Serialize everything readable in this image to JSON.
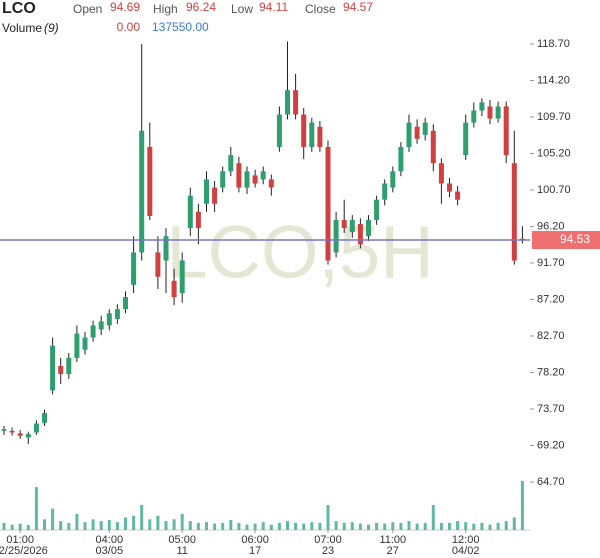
{
  "chart_data": {
    "type": "candlestick",
    "title": "LCO",
    "ohlc_labels": [
      "Open",
      "High",
      "Low",
      "Close"
    ],
    "ohlc_values": [
      94.69,
      96.24,
      94.11,
      94.57
    ],
    "volume_label": "Volume",
    "volume_period": "(9)",
    "volume_values": [
      {
        "value": 0,
        "label": "0.00"
      },
      {
        "value": 137550,
        "label": "137550.00"
      }
    ],
    "watermark": "LCO,5H",
    "last_price": 94.53,
    "categories": [
      null,
      null,
      "01:00",
      null,
      null,
      null,
      null,
      null,
      null,
      null,
      null,
      null,
      null,
      "04:00",
      null,
      null,
      null,
      null,
      null,
      null,
      null,
      null,
      "05:00",
      null,
      null,
      null,
      null,
      null,
      null,
      null,
      null,
      "06:00",
      null,
      null,
      null,
      null,
      null,
      null,
      null,
      null,
      "07:00",
      null,
      null,
      null,
      null,
      null,
      null,
      null,
      "11:00",
      null,
      null,
      null,
      null,
      null,
      null,
      null,
      null,
      "12:00",
      null,
      null,
      null,
      null,
      null,
      null,
      null
    ],
    "dates": [
      null,
      null,
      "02/25/2026",
      null,
      null,
      null,
      null,
      null,
      null,
      null,
      null,
      null,
      null,
      "03/05",
      null,
      null,
      null,
      null,
      null,
      null,
      null,
      null,
      "11",
      null,
      null,
      null,
      null,
      null,
      null,
      null,
      null,
      "17",
      null,
      null,
      null,
      null,
      null,
      null,
      null,
      null,
      "23",
      null,
      null,
      null,
      null,
      null,
      null,
      null,
      "27",
      null,
      null,
      null,
      null,
      null,
      null,
      null,
      null,
      "04/02",
      null,
      null,
      null,
      null,
      null,
      null,
      null
    ],
    "open": [
      71,
      71.0,
      70.7,
      70.2,
      70.8,
      72.0,
      76.0,
      79.0,
      78.0,
      80.0,
      81.0,
      82.5,
      83.5,
      84.0,
      84.8,
      86.0,
      89.0,
      93.0,
      106.0,
      93.0,
      92.0,
      89.5,
      88.0,
      96.0,
      98.0,
      99.0,
      101.0,
      101.0,
      103.0,
      104.0,
      101.0,
      102.5,
      102.0,
      102.0,
      106.0,
      110.0,
      113.0,
      110.0,
      106.0,
      108.5,
      106.0,
      93.0,
      97.0,
      95.5,
      96.5,
      95.0,
      97.0,
      99.5,
      101.0,
      103.0,
      106.0,
      108.5,
      107.5,
      108.0,
      104.0,
      101.5,
      100.5,
      105.0,
      109.0,
      110.5,
      111.0,
      109.5,
      111.0,
      104.0,
      94.69
    ],
    "high": [
      71.6,
      71.4,
      71.1,
      70.9,
      72.3,
      73.6,
      82.5,
      80.0,
      80.6,
      84.0,
      83.2,
      84.6,
      85.2,
      86.0,
      86.6,
      88.2,
      95.0,
      118.7,
      109.0,
      95.0,
      96.0,
      91.0,
      93.0,
      101.0,
      99.0,
      103.0,
      101.8,
      103.6,
      106.0,
      104.8,
      103.6,
      103.2,
      103.6,
      102.6,
      111.0,
      119.0,
      115.0,
      110.8,
      109.6,
      109.2,
      106.8,
      98.0,
      99.5,
      97.6,
      97.2,
      97.6,
      100.0,
      102.0,
      103.6,
      106.6,
      110.0,
      109.4,
      109.6,
      108.8,
      104.6,
      102.2,
      101.2,
      110.0,
      111.5,
      112.0,
      111.8,
      111.6,
      111.6,
      108.0,
      96.24
    ],
    "low": [
      70.5,
      70.4,
      70.0,
      69.4,
      70.5,
      71.6,
      75.5,
      76.8,
      77.4,
      79.5,
      80.4,
      82.0,
      82.8,
      83.4,
      84.2,
      85.5,
      88.0,
      92.0,
      97.0,
      88.5,
      88.0,
      86.5,
      86.8,
      95.0,
      94.0,
      98.0,
      98.0,
      100.4,
      102.4,
      100.4,
      100.2,
      101.0,
      101.4,
      100.0,
      105.4,
      109.4,
      109.4,
      104.5,
      105.4,
      105.4,
      91.5,
      92.4,
      95.4,
      94.8,
      93.5,
      94.4,
      96.4,
      98.8,
      100.4,
      102.4,
      105.4,
      106.4,
      106.8,
      103.0,
      99.0,
      99.8,
      98.8,
      104.4,
      108.4,
      109.8,
      108.8,
      109.0,
      104.0,
      91.5,
      94.11
    ],
    "close": [
      71.2,
      70.8,
      70.4,
      70.6,
      71.9,
      73.2,
      81.5,
      78.0,
      80.0,
      83.0,
      82.5,
      84.0,
      84.5,
      85.5,
      86.0,
      87.5,
      93.0,
      108.0,
      97.5,
      90.0,
      95.0,
      87.5,
      92.0,
      100.0,
      96.0,
      102.0,
      99.0,
      103.0,
      105.0,
      101.0,
      103.0,
      101.5,
      103.0,
      101.0,
      110.0,
      113.0,
      110.0,
      106.0,
      109.0,
      106.0,
      92.0,
      97.0,
      96.0,
      97.0,
      94.0,
      97.0,
      99.5,
      101.5,
      103.0,
      106.0,
      109.0,
      107.0,
      109.0,
      104.0,
      101.5,
      100.5,
      99.5,
      109.0,
      110.5,
      111.5,
      109.5,
      111.0,
      105.0,
      92.0,
      94.57
    ],
    "volume": [
      20000,
      15000,
      18000,
      14000,
      120000,
      30000,
      60000,
      25000,
      20000,
      45000,
      22000,
      30000,
      25000,
      28000,
      22000,
      35000,
      40000,
      70000,
      30000,
      40000,
      25000,
      30000,
      45000,
      25000,
      20000,
      22000,
      18000,
      20000,
      28000,
      20000,
      15000,
      18000,
      22000,
      15000,
      20000,
      25000,
      20000,
      18000,
      22000,
      20000,
      70000,
      25000,
      20000,
      22000,
      18000,
      15000,
      20000,
      18000,
      22000,
      20000,
      25000,
      18000,
      20000,
      70000,
      20000,
      20000,
      25000,
      22000,
      18000,
      20000,
      15000,
      20000,
      25000,
      35000,
      137550
    ],
    "ylim": [
      58.78,
      124.12
    ],
    "yticks": [
      {
        "value": 118.7,
        "label": "118.70"
      },
      {
        "value": 114.2,
        "label": "114.20"
      },
      {
        "value": 109.7,
        "label": "109.70"
      },
      {
        "value": 105.2,
        "label": "105.20"
      },
      {
        "value": 100.7,
        "label": "100.70"
      },
      {
        "value": 96.2,
        "label": "96.20"
      },
      {
        "value": 91.7,
        "label": "91.70"
      },
      {
        "value": 87.2,
        "label": "87.20"
      },
      {
        "value": 82.7,
        "label": "82.70"
      },
      {
        "value": 78.2,
        "label": "78.20"
      },
      {
        "value": 73.7,
        "label": "73.70"
      },
      {
        "value": 69.2,
        "label": "69.20"
      },
      {
        "value": 64.7,
        "label": "64.70"
      }
    ],
    "volume_lim": [
      0,
      140000
    ],
    "up_color": "#2e9e6e",
    "down_color": "#d04040",
    "volume_color": "#3aa88e",
    "last_price_color": "#7a72c8",
    "price_label_color": "#f07070"
  }
}
